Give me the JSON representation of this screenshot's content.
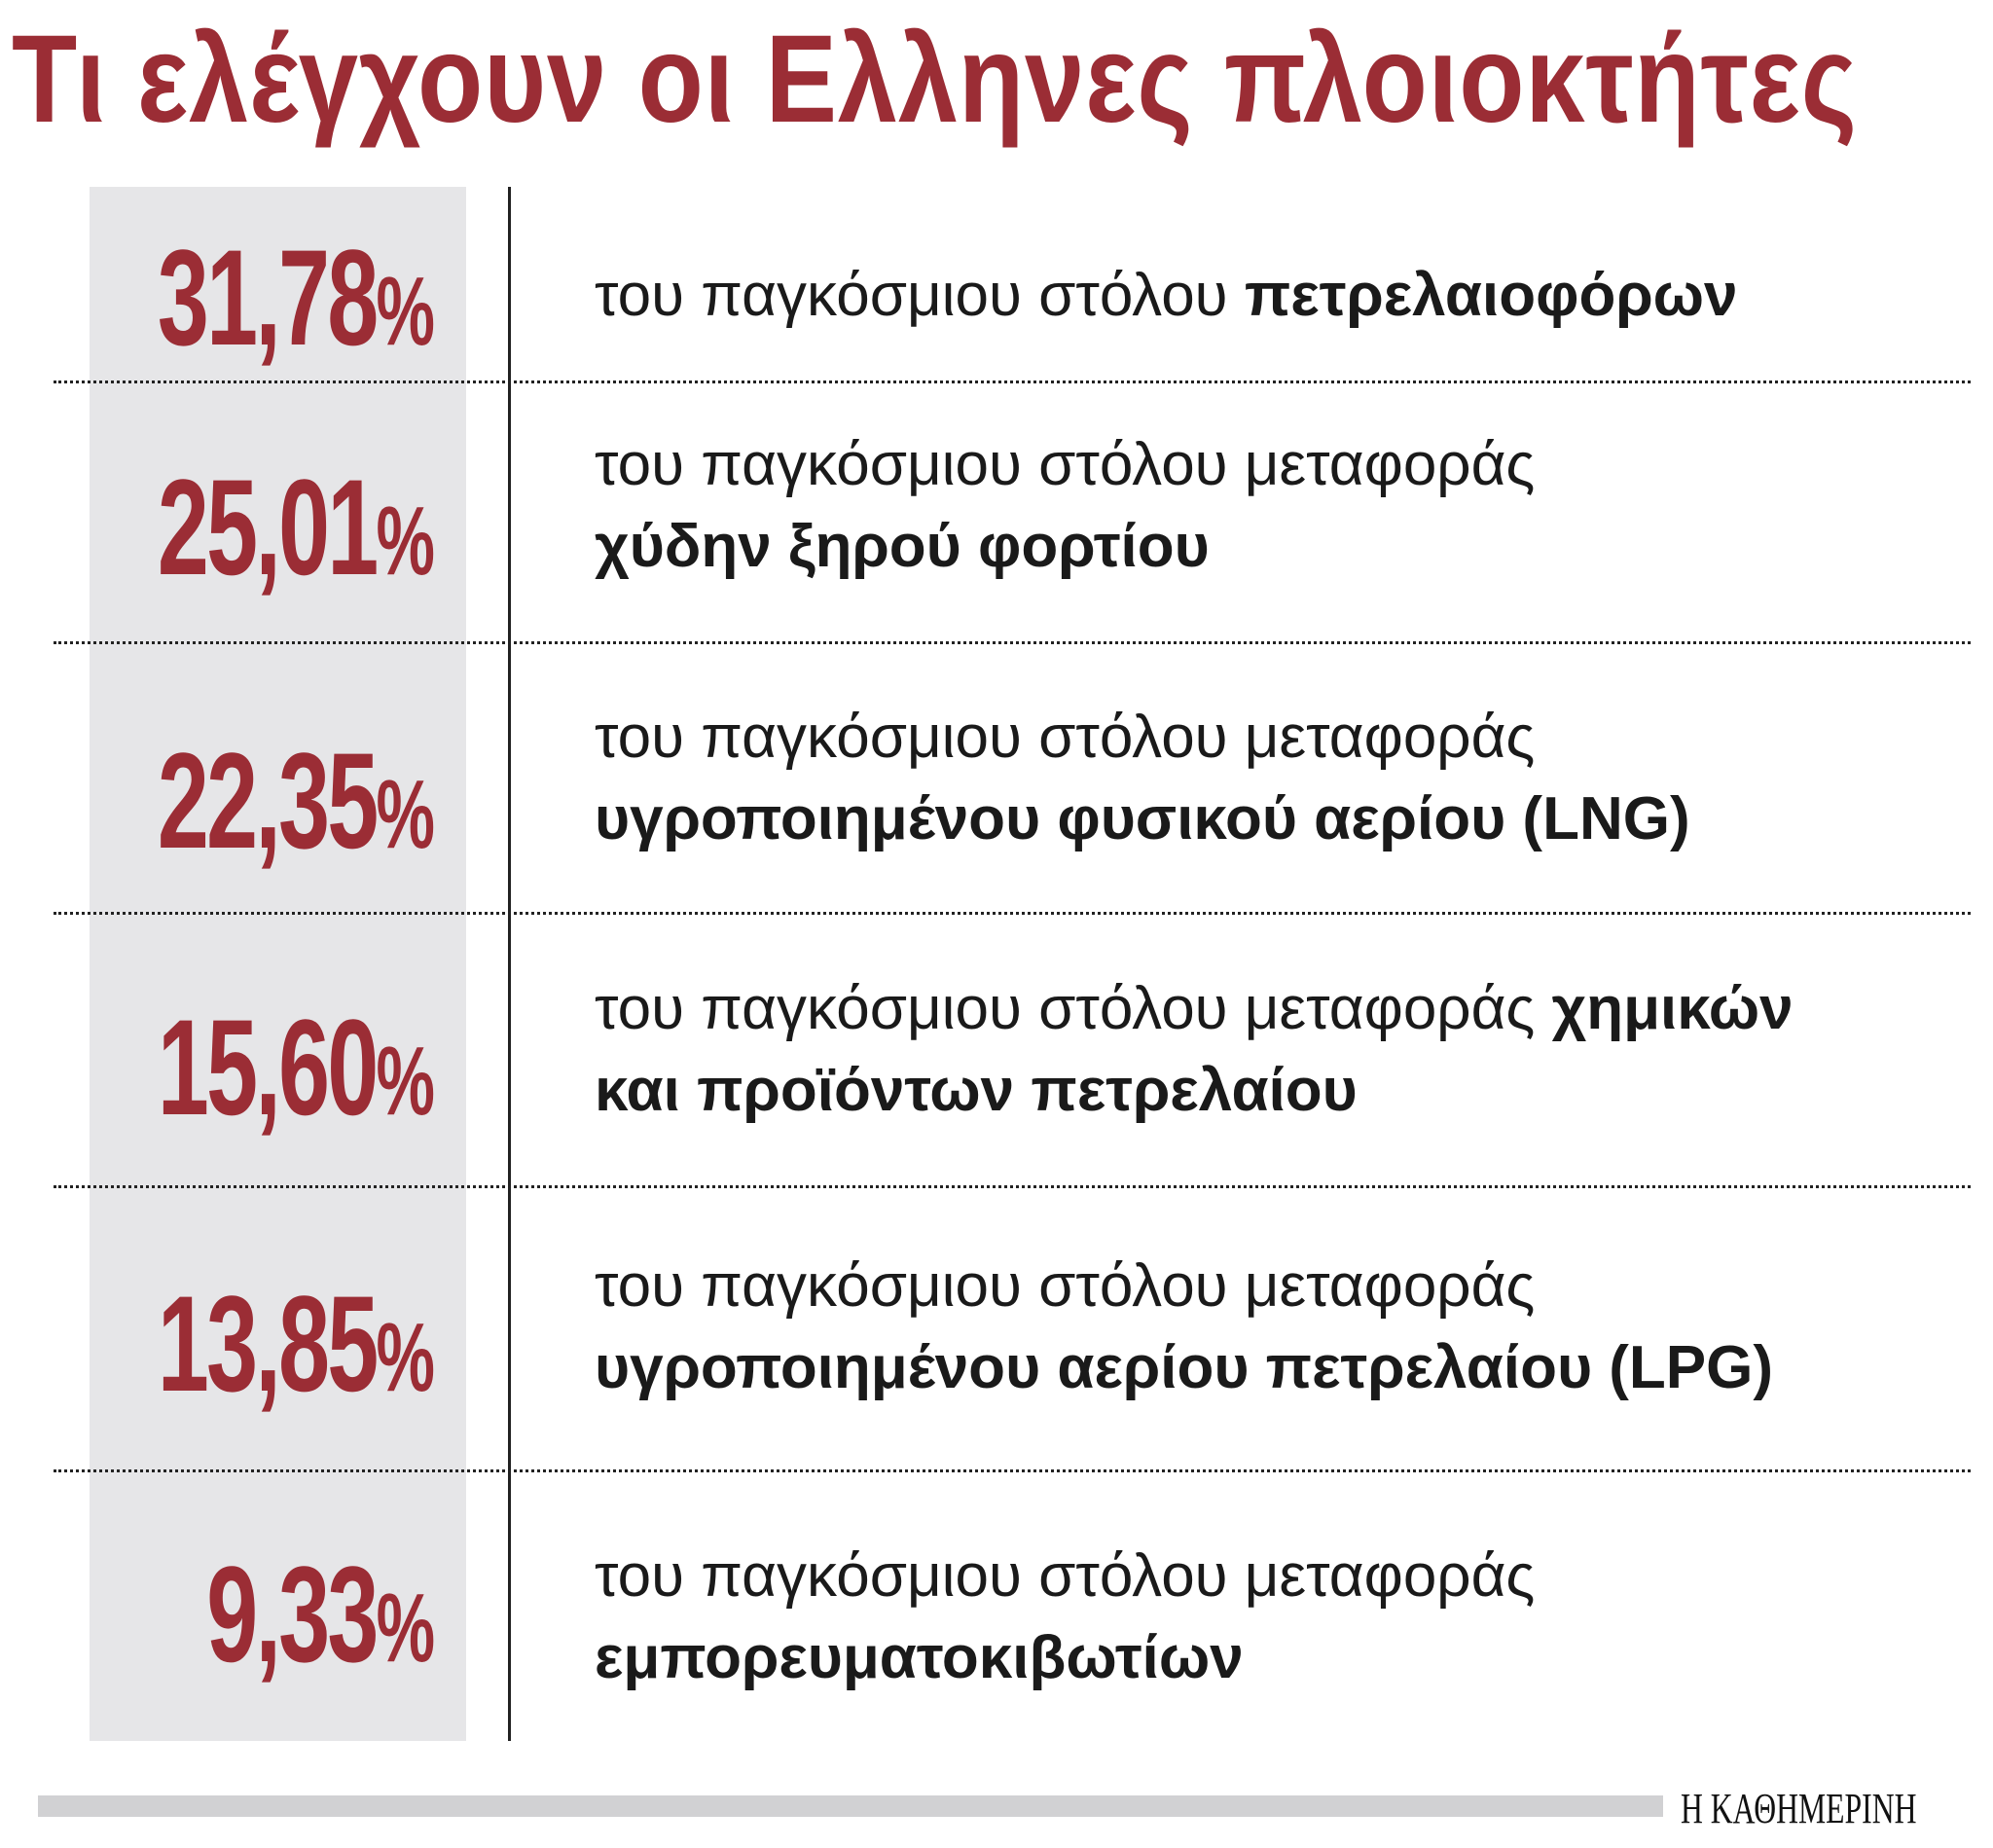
{
  "title": "Τι ελέγχουν οι Ελληνες πλοιοκτήτες",
  "rows": [
    {
      "value": "31,78",
      "pct": "%",
      "light1": "του παγκόσμιου στόλου ",
      "bold1": "πετρελαιοφόρων",
      "light2": "",
      "bold2": ""
    },
    {
      "value": "25,01",
      "pct": "%",
      "light1": "του παγκόσμιου στόλου μεταφοράς",
      "bold1": "",
      "light2": "",
      "bold2": "χύδην ξηρού φορτίου"
    },
    {
      "value": "22,35",
      "pct": "%",
      "light1": "του παγκόσμιου στόλου μεταφοράς",
      "bold1": "",
      "light2": "",
      "bold2": "υγροποιημένου φυσικού αερίου (LNG)"
    },
    {
      "value": "15,60",
      "pct": "%",
      "light1": "του παγκόσμιου στόλου μεταφοράς ",
      "bold1": "χημικών",
      "light2": "",
      "bold2": "και προϊόντων πετρελαίου"
    },
    {
      "value": "13,85",
      "pct": "%",
      "light1": "του παγκόσμιου στόλου μεταφοράς",
      "bold1": "",
      "light2": "",
      "bold2": "υγροποιημένου αερίου πετρελαίου (LPG)"
    },
    {
      "value": "9,33",
      "pct": "%",
      "light1": "του παγκόσμιου στόλου μεταφοράς",
      "bold1": "",
      "light2": "",
      "bold2": "εμπορευματοκιβωτίων"
    }
  ],
  "logo": "Η ΚΑΘΗΜΕΡΙΝΗ",
  "colors": {
    "accent": "#9b2d35",
    "column": "#e6e6e8",
    "bar": "#d1d1d3"
  }
}
